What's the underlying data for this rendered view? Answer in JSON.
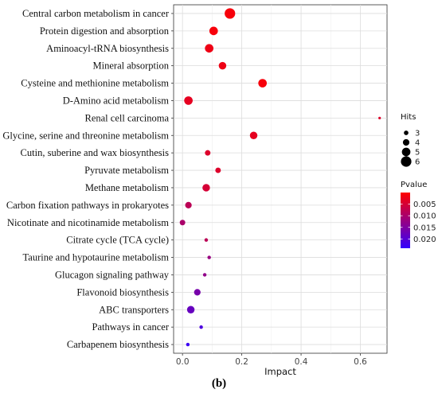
{
  "chart_data": {
    "type": "scatter",
    "title": "",
    "xlabel": "Impact",
    "ylabel": "",
    "xlim": [
      -0.03,
      0.69
    ],
    "x_ticks": [
      0.0,
      0.2,
      0.4,
      0.6
    ],
    "x_tick_labels": [
      "0.0",
      "0.2",
      "0.4",
      "0.6"
    ],
    "grid": true,
    "legend_position": "right",
    "categories": [
      "Central carbon metabolism in cancer",
      "Protein digestion and absorption",
      "Aminoacyl-tRNA biosynthesis",
      "Mineral absorption",
      "Cysteine and methionine metabolism",
      "D-Amino acid metabolism",
      "Renal cell carcinoma",
      "Glycine, serine and threonine metabolism",
      "Cutin, suberine and wax biosynthesis",
      "Pyruvate metabolism",
      "Methane metabolism",
      "Carbon fixation pathways in prokaryotes",
      "Nicotinate and nicotinamide metabolism",
      "Citrate cycle (TCA cycle)",
      "Taurine and hypotaurine metabolism",
      "Glucagon signaling pathway",
      "Flavonoid biosynthesis",
      "ABC transporters",
      "Pathways in cancer",
      "Carbapenem biosynthesis"
    ],
    "points": [
      {
        "impact": 0.16,
        "hits": 6,
        "pvalue": 0.001
      },
      {
        "impact": 0.105,
        "hits": 5,
        "pvalue": 0.001
      },
      {
        "impact": 0.09,
        "hits": 5,
        "pvalue": 0.002
      },
      {
        "impact": 0.135,
        "hits": 4.5,
        "pvalue": 0.002
      },
      {
        "impact": 0.27,
        "hits": 5,
        "pvalue": 0.001
      },
      {
        "impact": 0.02,
        "hits": 5,
        "pvalue": 0.003
      },
      {
        "impact": 0.665,
        "hits": 2,
        "pvalue": 0.004
      },
      {
        "impact": 0.24,
        "hits": 4.5,
        "pvalue": 0.003
      },
      {
        "impact": 0.085,
        "hits": 3.5,
        "pvalue": 0.004
      },
      {
        "impact": 0.12,
        "hits": 3.5,
        "pvalue": 0.004
      },
      {
        "impact": 0.08,
        "hits": 4.5,
        "pvalue": 0.005
      },
      {
        "impact": 0.02,
        "hits": 4,
        "pvalue": 0.008
      },
      {
        "impact": 0.0,
        "hits": 3.5,
        "pvalue": 0.01
      },
      {
        "impact": 0.08,
        "hits": 2.5,
        "pvalue": 0.008
      },
      {
        "impact": 0.09,
        "hits": 2.5,
        "pvalue": 0.012
      },
      {
        "impact": 0.075,
        "hits": 2.5,
        "pvalue": 0.013
      },
      {
        "impact": 0.05,
        "hits": 4,
        "pvalue": 0.016
      },
      {
        "impact": 0.028,
        "hits": 4.5,
        "pvalue": 0.018
      },
      {
        "impact": 0.063,
        "hits": 2.5,
        "pvalue": 0.021
      },
      {
        "impact": 0.018,
        "hits": 2.5,
        "pvalue": 0.023
      }
    ],
    "legend_size": {
      "title": "Hits",
      "values": [
        3,
        4,
        5,
        6
      ],
      "labels": [
        "3",
        "4",
        "5",
        "6"
      ]
    },
    "legend_color": {
      "title": "Pvalue",
      "range": [
        0.0,
        0.024
      ],
      "ticks": [
        0.005,
        0.01,
        0.015,
        0.02
      ],
      "tick_labels": [
        "0.005",
        "0.010",
        "0.015",
        "0.020"
      ],
      "low_color": "#FF0000",
      "high_color": "#3300FF"
    }
  },
  "caption": "(b)"
}
